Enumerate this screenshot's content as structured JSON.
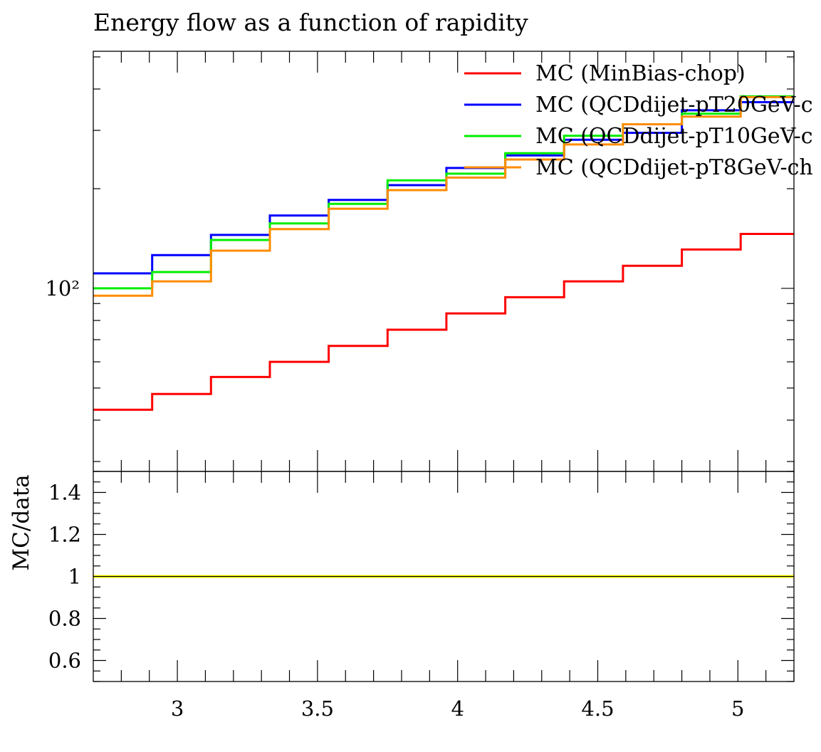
{
  "chart_data": {
    "type": "line",
    "title": "Energy flow as a function of rapidity",
    "xlabel": "",
    "main": {
      "ylabel": "",
      "yscale": "log",
      "ylim": [
        28,
        520
      ],
      "ytick_labels": [
        "10²"
      ],
      "bin_edges": [
        2.7,
        2.91,
        3.12,
        3.33,
        3.54,
        3.75,
        3.96,
        4.17,
        4.38,
        4.59,
        4.8,
        5.01,
        5.2
      ],
      "series": [
        {
          "name": "MC (MinBias-chop)",
          "color": "#ff0000",
          "values": [
            43,
            48,
            54,
            60,
            67,
            75,
            84,
            94,
            105,
            117,
            131,
            146
          ]
        },
        {
          "name": "MC (QCDdijet-pT20GeV-c",
          "color": "#0000ff",
          "values": [
            111,
            126,
            145,
            166,
            185,
            205,
            231,
            252,
            281,
            295,
            345,
            365
          ]
        },
        {
          "name": "MC (QCDdijet-pT10GeV-c",
          "color": "#00ee00",
          "values": [
            100,
            112,
            140,
            157,
            180,
            212,
            222,
            256,
            289,
            313,
            337,
            380
          ]
        },
        {
          "name": "MC (QCDdijet-pT8GeV-ch",
          "color": "#ff8c00",
          "values": [
            95,
            105,
            130,
            151,
            174,
            198,
            216,
            245,
            272,
            313,
            330,
            378
          ]
        }
      ]
    },
    "ratio": {
      "ylabel": "MC/data",
      "ylim": [
        0.5,
        1.5
      ],
      "ytick_labels": [
        "0.6",
        "0.8",
        "1",
        "1.2",
        "1.4"
      ],
      "ytick_values": [
        0.6,
        0.8,
        1.0,
        1.2,
        1.4
      ],
      "reference_value": 1.0,
      "band_color": "#ffff00"
    },
    "x": {
      "xlim": [
        2.7,
        5.2
      ],
      "tick_labels": [
        "3",
        "3.5",
        "4",
        "4.5",
        "5"
      ],
      "tick_values": [
        3.0,
        3.5,
        4.0,
        4.5,
        5.0
      ]
    },
    "legend": {
      "placement": "top-right"
    },
    "grid": false
  }
}
